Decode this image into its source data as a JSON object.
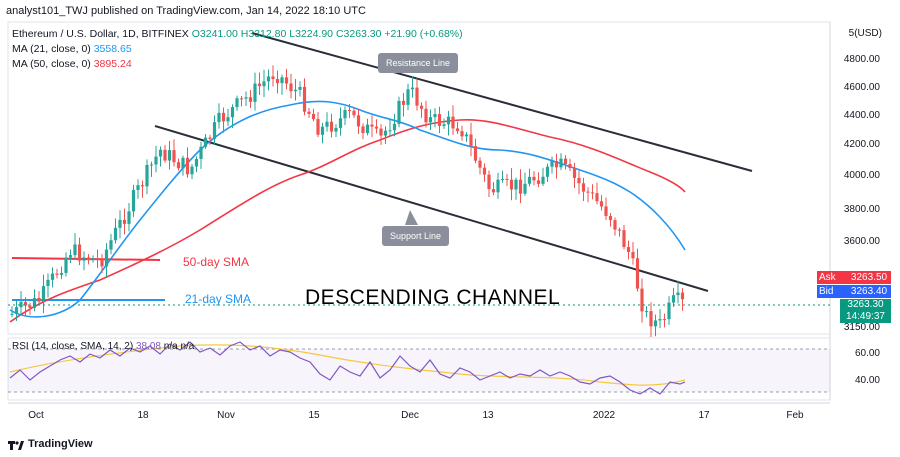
{
  "header": {
    "text": "analyst101_TWJ published on TradingView.com, Jan 14, 2022 18:10 UTC"
  },
  "legend": {
    "symbol": "Ethereum / U.S. Dollar, 1D, BITFINEX",
    "ohlc": "O3241.00 H3312.80 L3224.90 C3263.30",
    "change": "+21.90 (+0.68%)",
    "ma21_label": "MA (21, close, 0)",
    "ma21_value": "3558.65",
    "ma50_label": "MA (50, close, 0)",
    "ma50_value": "3895.24"
  },
  "price_axis": {
    "currency": "USD",
    "labels": [
      "4800.00",
      "4600.00",
      "4400.00",
      "4200.00",
      "4000.00",
      "3800.00",
      "3600.00",
      "3150.00"
    ]
  },
  "price_tags": {
    "ask_label": "Ask",
    "ask_value": "3263.50",
    "bid_label": "Bid",
    "bid_value": "3263.40",
    "last_value": "3263.30",
    "countdown": "14:49:37"
  },
  "rsi": {
    "legend": "RSI (14, close, SMA, 14, 2)",
    "value": "38.08",
    "extra": "n/a n/a",
    "labels": [
      "60.00",
      "40.00"
    ]
  },
  "x_axis": {
    "labels": [
      "Oct",
      "18",
      "Nov",
      "15",
      "Dec",
      "13",
      "2022",
      "17",
      "Feb"
    ]
  },
  "annotations": {
    "resistance": "Resistance Line",
    "support": "Support Line",
    "sma50": "50-day SMA",
    "sma21": "21-day SMA",
    "title": "DESCENDING CHANNEL"
  },
  "footer": {
    "brand": "TradingView"
  },
  "colors": {
    "up": "#26a69a",
    "down": "#ef5350",
    "ma21": "#2196f3",
    "ma50": "#f23645",
    "rsi": "#7e57c2",
    "rsi_sma": "#f5c842"
  }
}
